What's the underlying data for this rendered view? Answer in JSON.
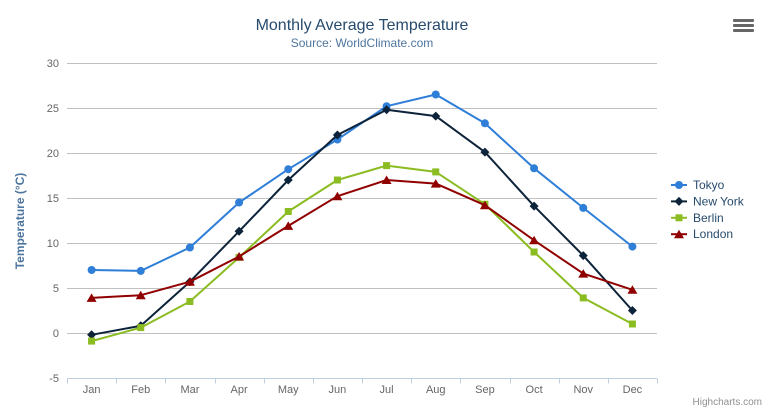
{
  "chart_data": {
    "type": "line",
    "title": "Monthly Average Temperature",
    "subtitle": "Source: WorldClimate.com",
    "xlabel": "",
    "ylabel": "Temperature (°C)",
    "categories": [
      "Jan",
      "Feb",
      "Mar",
      "Apr",
      "May",
      "Jun",
      "Jul",
      "Aug",
      "Sep",
      "Oct",
      "Nov",
      "Dec"
    ],
    "ylim": [
      -5,
      30
    ],
    "ytick_interval": 5,
    "grid": true,
    "legend_position": "right",
    "series": [
      {
        "name": "Tokyo",
        "marker": "circle",
        "color": "#2f7ed8",
        "values": [
          7.0,
          6.9,
          9.5,
          14.5,
          18.2,
          21.5,
          25.2,
          26.5,
          23.3,
          18.3,
          13.9,
          9.6
        ]
      },
      {
        "name": "New York",
        "marker": "diamond",
        "color": "#0d233a",
        "values": [
          -0.2,
          0.8,
          5.7,
          11.3,
          17.0,
          22.0,
          24.8,
          24.1,
          20.1,
          14.1,
          8.6,
          2.5
        ]
      },
      {
        "name": "Berlin",
        "marker": "square",
        "color": "#8bbc21",
        "values": [
          -0.9,
          0.6,
          3.5,
          8.4,
          13.5,
          17.0,
          18.6,
          17.9,
          14.3,
          9.0,
          3.9,
          1.0
        ]
      },
      {
        "name": "London",
        "marker": "triangle",
        "color": "#910000",
        "values": [
          3.9,
          4.2,
          5.7,
          8.5,
          11.9,
          15.2,
          17.0,
          16.6,
          14.2,
          10.3,
          6.6,
          4.8
        ]
      }
    ]
  },
  "credit": "Highcharts.com",
  "colors": {
    "background": "#ffffff",
    "title": "#274b6d",
    "subtitle": "#4d759e",
    "axis_title": "#4d759e",
    "tick_label": "#666666",
    "grid": "#c0c0c0",
    "axis_line": "#c0d0e0",
    "legend_text": "#274b6d",
    "credit": "#909090",
    "menu_icon": "#666666"
  }
}
